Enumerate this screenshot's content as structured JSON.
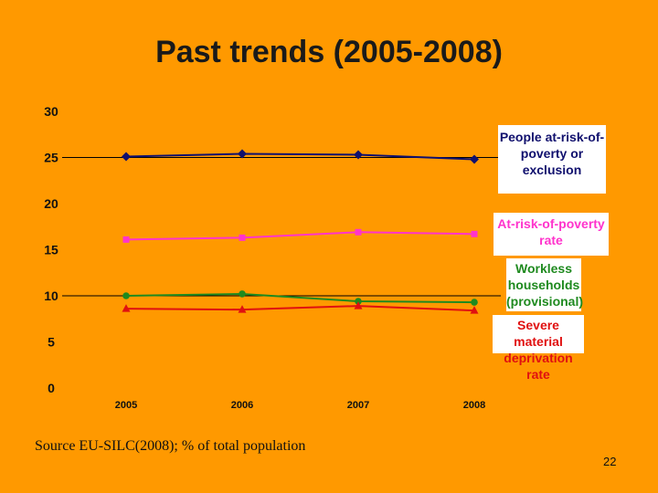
{
  "slide": {
    "title": "Past trends (2005-2008)",
    "source": "Source EU-SILC(2008); % of total population",
    "number": "22"
  },
  "chart_data": {
    "type": "line",
    "title": "Past trends (2005-2008)",
    "x": [
      "2005",
      "2006",
      "2007",
      "2008"
    ],
    "ylim": [
      0,
      30
    ],
    "yticks": [
      "0",
      "5",
      "10",
      "15",
      "20",
      "25",
      "30"
    ],
    "grid": false,
    "legend": "right (labels next to series)",
    "reference_lines": [
      25,
      10
    ],
    "series": [
      {
        "name": "People at-risk-of-poverty or exclusion",
        "values": [
          25.1,
          25.4,
          25.3,
          24.8
        ],
        "color": "#10106e",
        "marker": "diamond"
      },
      {
        "name": "At-risk-of-poverty rate",
        "values": [
          16.1,
          16.3,
          16.9,
          16.7
        ],
        "color": "#ff33cc",
        "marker": "square"
      },
      {
        "name": "Workless households (provisional)",
        "values": [
          10.0,
          10.2,
          9.4,
          9.3
        ],
        "color": "#1f8a1f",
        "marker": "circle"
      },
      {
        "name": "Severe material deprivation rate",
        "values": [
          8.6,
          8.5,
          8.9,
          8.4
        ],
        "color": "#e01010",
        "marker": "triangle"
      }
    ]
  },
  "legend_labels": [
    {
      "lines": [
        "People at-risk-of-",
        "poverty or",
        "exclusion"
      ],
      "color": "#10106e"
    },
    {
      "lines": [
        "At-risk-of-poverty",
        "rate"
      ],
      "color": "#ff33cc"
    },
    {
      "lines": [
        "Workless",
        "households",
        "(provisional)"
      ],
      "color": "#1f8a1f"
    },
    {
      "lines": [
        "Severe material",
        "deprivation rate"
      ],
      "color": "#e01010"
    }
  ]
}
